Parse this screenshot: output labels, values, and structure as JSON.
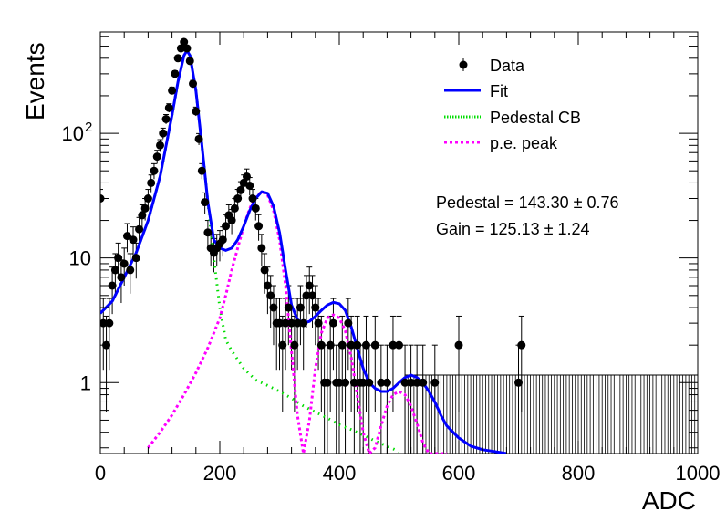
{
  "chart_data": {
    "type": "scatter",
    "title": "",
    "xlabel": "ADC",
    "ylabel": "Events",
    "xlim": [
      0,
      1000
    ],
    "ylim": [
      0.27,
      650
    ],
    "yscale": "log",
    "grid": false,
    "legend_placement": "top-right",
    "x_ticks": [
      {
        "value": 0,
        "label": "0"
      },
      {
        "value": 200,
        "label": "200"
      },
      {
        "value": 400,
        "label": "400"
      },
      {
        "value": 600,
        "label": "600"
      },
      {
        "value": 800,
        "label": "800"
      },
      {
        "value": 1000,
        "label": "1000"
      }
    ],
    "y_ticks": [
      {
        "value": 1,
        "label": "1"
      },
      {
        "value": 10,
        "label": "10"
      },
      {
        "value": 100,
        "label": "10",
        "exponent": "2"
      }
    ],
    "legend": [
      {
        "label": "Data",
        "style": "marker",
        "color": "#000000"
      },
      {
        "label": "Fit",
        "style": "solid",
        "color": "#0000ff"
      },
      {
        "label": "Pedestal CB",
        "style": "dotted",
        "color": "#00dd00"
      },
      {
        "label": "p.e. peak",
        "style": "dashed",
        "color": "#ff00ff"
      }
    ],
    "annotations": [
      {
        "text": "Pedestal = 143.30 ± 0.76"
      },
      {
        "text": "Gain = 125.13 ± 1.24"
      }
    ],
    "series": [
      {
        "name": "Data",
        "x": [
          0,
          5,
          10,
          15,
          20,
          25,
          30,
          35,
          40,
          45,
          50,
          55,
          60,
          65,
          70,
          75,
          80,
          85,
          90,
          95,
          100,
          105,
          110,
          115,
          120,
          125,
          130,
          135,
          140,
          145,
          150,
          155,
          160,
          165,
          170,
          175,
          180,
          185,
          190,
          195,
          200,
          205,
          210,
          215,
          220,
          225,
          230,
          235,
          240,
          245,
          250,
          255,
          260,
          265,
          270,
          275,
          280,
          285,
          290,
          295,
          300,
          305,
          310,
          315,
          320,
          325,
          330,
          335,
          340,
          345,
          350,
          355,
          360,
          365,
          370,
          375,
          380,
          385,
          390,
          395,
          400,
          405,
          410,
          415,
          420,
          425,
          430,
          435,
          440,
          445,
          450,
          460,
          470,
          480,
          490,
          500,
          510,
          520,
          530,
          540,
          560,
          600,
          700,
          705
        ],
        "y": [
          30,
          3,
          2,
          3,
          6,
          8,
          10,
          7,
          9,
          15,
          8,
          14,
          10,
          17,
          22,
          25,
          30,
          40,
          50,
          65,
          80,
          100,
          130,
          160,
          220,
          300,
          400,
          480,
          540,
          480,
          380,
          250,
          150,
          90,
          50,
          28,
          16,
          12,
          11,
          12,
          13,
          14,
          18,
          22,
          20,
          25,
          30,
          35,
          40,
          45,
          38,
          30,
          25,
          18,
          12,
          8,
          6,
          5,
          4,
          3,
          3,
          2,
          3,
          4,
          3,
          2,
          3,
          4,
          3,
          5,
          6,
          5,
          4,
          3,
          2,
          1,
          1,
          2,
          3,
          1,
          1,
          2,
          1,
          3,
          2,
          1,
          2,
          1,
          1,
          2,
          1,
          2,
          1,
          1,
          2,
          2,
          1,
          1,
          1,
          1,
          1,
          2,
          1,
          2
        ]
      },
      {
        "name": "Fit",
        "x": [
          0,
          20,
          40,
          60,
          80,
          100,
          120,
          130,
          140,
          145,
          150,
          160,
          170,
          180,
          190,
          200,
          210,
          220,
          230,
          240,
          250,
          260,
          270,
          280,
          290,
          300,
          310,
          320,
          330,
          340,
          350,
          360,
          370,
          380,
          390,
          400,
          410,
          420,
          430,
          440,
          450,
          460,
          470,
          480,
          490,
          500,
          510,
          520,
          530,
          540,
          550,
          560,
          570,
          580,
          600,
          620,
          640,
          660,
          680
        ],
        "y": [
          3.6,
          4.5,
          7,
          11,
          20,
          45,
          140,
          260,
          420,
          460,
          420,
          220,
          80,
          28,
          14,
          12,
          11.5,
          12,
          14,
          18,
          24,
          30,
          34,
          33,
          26,
          16,
          8,
          4.2,
          3.2,
          3.0,
          3.1,
          3.4,
          3.8,
          4.2,
          4.4,
          4.3,
          3.8,
          2.8,
          1.9,
          1.3,
          1.0,
          0.9,
          0.85,
          0.85,
          0.9,
          1.0,
          1.1,
          1.15,
          1.1,
          1.0,
          0.85,
          0.7,
          0.55,
          0.45,
          0.36,
          0.31,
          0.29,
          0.28,
          0.27
        ]
      },
      {
        "name": "Pedestal CB",
        "x": [
          0,
          20,
          40,
          60,
          80,
          100,
          120,
          130,
          140,
          145,
          150,
          160,
          170,
          180,
          190,
          200,
          210,
          220,
          240,
          260,
          280,
          300,
          320,
          340,
          360,
          380,
          400,
          420,
          440,
          460,
          480,
          500
        ],
        "y": [
          3.6,
          4.5,
          7,
          11,
          20,
          45,
          140,
          260,
          420,
          460,
          420,
          220,
          80,
          28,
          10,
          4,
          2.2,
          1.8,
          1.3,
          1.05,
          0.95,
          0.85,
          0.75,
          0.65,
          0.58,
          0.52,
          0.46,
          0.42,
          0.38,
          0.34,
          0.31,
          0.28
        ]
      },
      {
        "name": "p.e. peak",
        "x": [
          80,
          100,
          120,
          140,
          160,
          180,
          200,
          210,
          220,
          230,
          240,
          250,
          260,
          270,
          280,
          290,
          300,
          310,
          320,
          330,
          340,
          350,
          360,
          370,
          380,
          390,
          400,
          410,
          420,
          430,
          440,
          450,
          460,
          470,
          480,
          490,
          500,
          510,
          520,
          530,
          540,
          550,
          560,
          570,
          580
        ],
        "y": [
          0.3,
          0.4,
          0.55,
          0.8,
          1.2,
          1.9,
          3.3,
          5,
          8,
          12,
          18,
          25,
          31,
          34,
          32,
          24,
          14,
          6,
          1.8,
          0.55,
          0.27,
          0.5,
          1.3,
          2.5,
          3.3,
          3.5,
          3.3,
          2.6,
          1.6,
          0.8,
          0.4,
          0.27,
          0.3,
          0.45,
          0.65,
          0.8,
          0.85,
          0.8,
          0.65,
          0.47,
          0.33,
          0.27,
          0.27,
          0.27,
          0.27
        ]
      }
    ]
  }
}
